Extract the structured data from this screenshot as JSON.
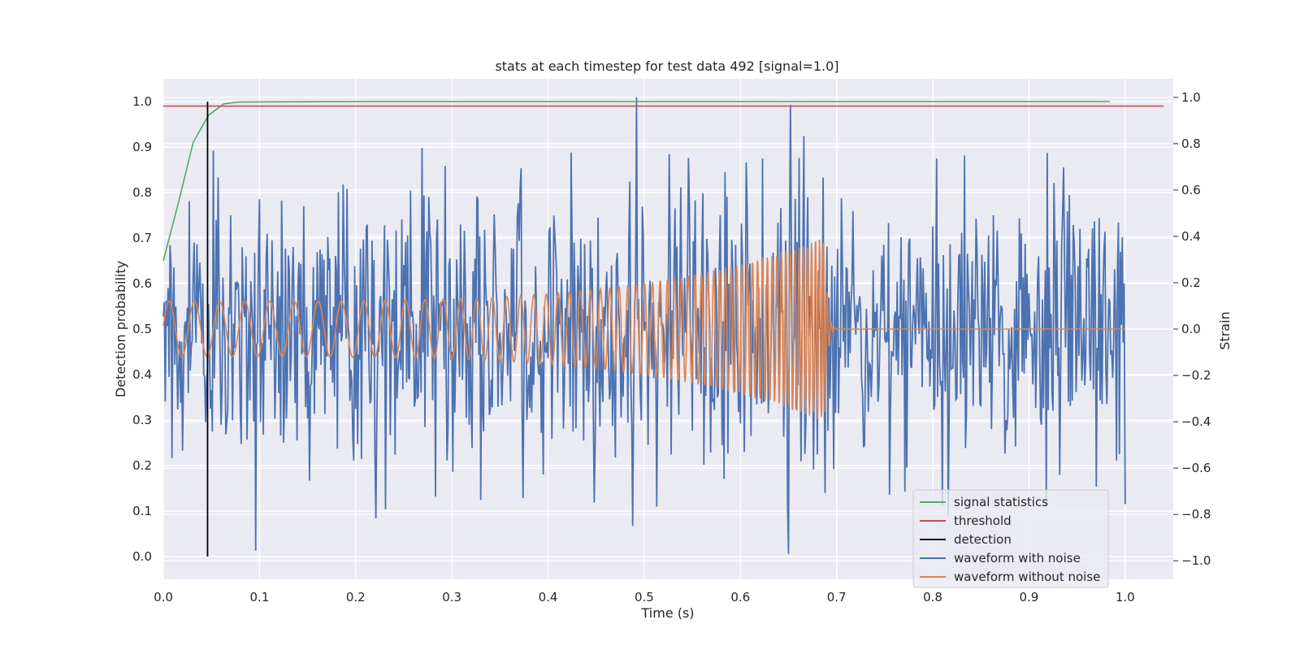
{
  "chart_data": {
    "type": "line",
    "title": "stats at each timestep for test data 492 [signal=1.0]",
    "xlabel": "Time (s)",
    "ylabel": "Detection probability",
    "y2label": "Strain",
    "xlim": [
      0.0,
      1.05
    ],
    "ylim": [
      -0.05,
      1.05
    ],
    "y2lim": [
      -1.08,
      1.08
    ],
    "grid": true,
    "legend_position": "lower right",
    "x_ticks": [
      "0.0",
      "0.1",
      "0.2",
      "0.3",
      "0.4",
      "0.5",
      "0.6",
      "0.7",
      "0.8",
      "0.9",
      "1.0"
    ],
    "y_ticks": [
      "0.0",
      "0.1",
      "0.2",
      "0.3",
      "0.4",
      "0.5",
      "0.6",
      "0.7",
      "0.8",
      "0.9",
      "1.0"
    ],
    "y2_ticks": [
      "−1.0",
      "−0.8",
      "−0.6",
      "−0.4",
      "−0.2",
      "0.0",
      "0.2",
      "0.4",
      "0.6",
      "0.8",
      "1.0"
    ],
    "x_tick_values": [
      0.0,
      0.1,
      0.2,
      0.3,
      0.4,
      0.5,
      0.6,
      0.7,
      0.8,
      0.9,
      1.0
    ],
    "y_tick_values": [
      0.0,
      0.1,
      0.2,
      0.3,
      0.4,
      0.5,
      0.6,
      0.7,
      0.8,
      0.9,
      1.0
    ],
    "y2_tick_values": [
      -1.0,
      -0.8,
      -0.6,
      -0.4,
      -0.2,
      0.0,
      0.2,
      0.4,
      0.6,
      0.8,
      1.0
    ],
    "series": [
      {
        "name": "signal statistics",
        "color": "#55a868",
        "axis": "left",
        "x": [
          0.0,
          0.016,
          0.031,
          0.047,
          0.063,
          0.078,
          0.2,
          0.4,
          0.6,
          0.8,
          0.984
        ],
        "y": [
          0.65,
          0.78,
          0.91,
          0.97,
          0.995,
          0.999,
          1.0,
          1.0,
          1.0,
          1.0,
          1.0
        ]
      },
      {
        "name": "threshold",
        "color": "#c44e52",
        "axis": "left",
        "x": [
          0.0,
          1.04
        ],
        "y": [
          0.99,
          0.99
        ]
      },
      {
        "name": "detection",
        "color": "#000000",
        "axis": "left",
        "x": [
          0.046,
          0.046
        ],
        "y": [
          0.0,
          1.0
        ]
      },
      {
        "name": "waveform with noise",
        "color": "#4c72b0",
        "axis": "right",
        "x_range": [
          0.0,
          1.0
        ],
        "amplitude_std": 0.3,
        "y_max": 1.0,
        "y_min": -1.0
      },
      {
        "name": "waveform without noise",
        "color": "#dd8452",
        "axis": "right",
        "x_range": [
          0.0,
          1.0
        ],
        "amplitude_start": 0.12,
        "amplitude_peak": 0.4,
        "merger_time": 0.688,
        "frequency_start_hz": 38,
        "frequency_end_hz": 250
      }
    ]
  }
}
